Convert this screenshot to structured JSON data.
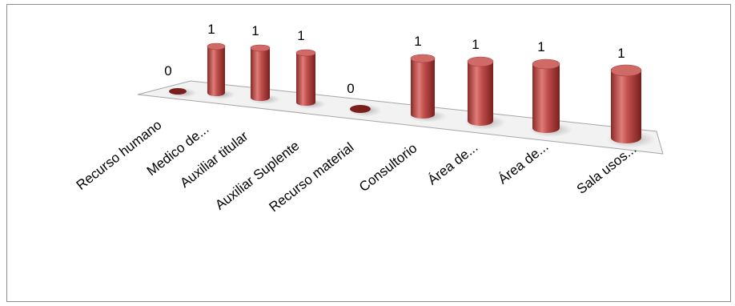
{
  "chart_data": {
    "type": "bar",
    "style": "3d-cylinder",
    "categories": [
      "Recurso humano",
      "Medico de...",
      "Auxiliar titular",
      "Auxiliar Suplente",
      "Recurso material",
      "Consultorio",
      "Área de...",
      "Área de...",
      "Sala usos..."
    ],
    "values": [
      0,
      1,
      1,
      1,
      0,
      1,
      1,
      1,
      1
    ],
    "data_labels": [
      "0",
      "1",
      "1",
      "1",
      "0",
      "1",
      "1",
      "1",
      "1"
    ],
    "ylim": [
      0,
      1
    ],
    "colors": {
      "bar": "#c0504d",
      "bar_light": "#e8a09e",
      "bar_dark": "#7a1f1d",
      "floor": "#f2f2f2"
    },
    "legend": "none",
    "grid": false
  }
}
